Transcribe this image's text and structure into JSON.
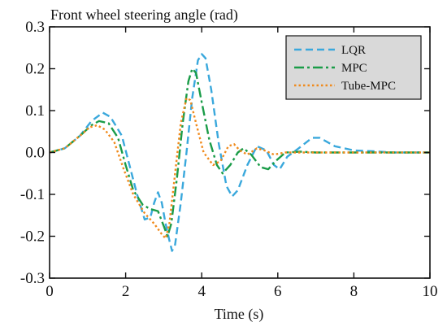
{
  "chart_data": {
    "type": "line",
    "title": "Front wheel steering angle (rad)",
    "xlabel": "Time (s)",
    "ylabel": "",
    "xlim": [
      0,
      10
    ],
    "ylim": [
      -0.3,
      0.3
    ],
    "x_ticks": [
      "0",
      "2",
      "4",
      "6",
      "8",
      "10"
    ],
    "y_ticks": [
      "-0.3",
      "-0.2",
      "-0.1",
      "0.0",
      "0.1",
      "0.2",
      "0.3"
    ],
    "grid": false,
    "legend_position": "top-right",
    "legend_background": "#d9d9d9",
    "series": [
      {
        "name": "LQR",
        "color": "#3aa8dc",
        "dash": "dashed",
        "points": [
          [
            0,
            0
          ],
          [
            0.4,
            0.01
          ],
          [
            0.8,
            0.04
          ],
          [
            1.1,
            0.075
          ],
          [
            1.4,
            0.095
          ],
          [
            1.6,
            0.085
          ],
          [
            1.9,
            0.04
          ],
          [
            2.1,
            -0.03
          ],
          [
            2.3,
            -0.1
          ],
          [
            2.5,
            -0.16
          ],
          [
            2.65,
            -0.155
          ],
          [
            2.75,
            -0.12
          ],
          [
            2.85,
            -0.095
          ],
          [
            2.95,
            -0.12
          ],
          [
            3.05,
            -0.17
          ],
          [
            3.15,
            -0.21
          ],
          [
            3.22,
            -0.235
          ],
          [
            3.3,
            -0.22
          ],
          [
            3.45,
            -0.12
          ],
          [
            3.6,
            0.0
          ],
          [
            3.75,
            0.13
          ],
          [
            3.9,
            0.22
          ],
          [
            4.0,
            0.235
          ],
          [
            4.1,
            0.225
          ],
          [
            4.25,
            0.15
          ],
          [
            4.45,
            0.02
          ],
          [
            4.65,
            -0.08
          ],
          [
            4.8,
            -0.105
          ],
          [
            4.95,
            -0.09
          ],
          [
            5.2,
            -0.03
          ],
          [
            5.45,
            0.015
          ],
          [
            5.7,
            0.005
          ],
          [
            5.9,
            -0.03
          ],
          [
            6.05,
            -0.04
          ],
          [
            6.25,
            -0.01
          ],
          [
            6.55,
            0.01
          ],
          [
            6.9,
            0.035
          ],
          [
            7.1,
            0.035
          ],
          [
            7.5,
            0.015
          ],
          [
            8.0,
            0.005
          ],
          [
            8.5,
            0.003
          ],
          [
            9.0,
            0.0
          ],
          [
            10,
            0
          ]
        ]
      },
      {
        "name": "MPC",
        "color": "#1a9c48",
        "dash": "dashdot",
        "points": [
          [
            0,
            0
          ],
          [
            0.4,
            0.01
          ],
          [
            0.8,
            0.04
          ],
          [
            1.1,
            0.065
          ],
          [
            1.3,
            0.075
          ],
          [
            1.55,
            0.07
          ],
          [
            1.8,
            0.035
          ],
          [
            2.0,
            -0.03
          ],
          [
            2.2,
            -0.09
          ],
          [
            2.45,
            -0.125
          ],
          [
            2.65,
            -0.135
          ],
          [
            2.85,
            -0.14
          ],
          [
            3.0,
            -0.175
          ],
          [
            3.1,
            -0.2
          ],
          [
            3.2,
            -0.17
          ],
          [
            3.35,
            -0.06
          ],
          [
            3.5,
            0.07
          ],
          [
            3.65,
            0.17
          ],
          [
            3.75,
            0.2
          ],
          [
            3.85,
            0.19
          ],
          [
            4.0,
            0.12
          ],
          [
            4.2,
            0.03
          ],
          [
            4.4,
            -0.03
          ],
          [
            4.55,
            -0.05
          ],
          [
            4.75,
            -0.03
          ],
          [
            4.95,
            0.0
          ],
          [
            5.1,
            0.01
          ],
          [
            5.3,
            -0.005
          ],
          [
            5.55,
            -0.035
          ],
          [
            5.75,
            -0.04
          ],
          [
            5.95,
            -0.02
          ],
          [
            6.2,
            0.0
          ],
          [
            6.6,
            0.002
          ],
          [
            7.0,
            0.0
          ],
          [
            10,
            0
          ]
        ]
      },
      {
        "name": "Tube-MPC",
        "color": "#f08a1c",
        "dash": "dotted",
        "points": [
          [
            0,
            0
          ],
          [
            0.4,
            0.01
          ],
          [
            0.8,
            0.04
          ],
          [
            1.05,
            0.06
          ],
          [
            1.25,
            0.065
          ],
          [
            1.45,
            0.055
          ],
          [
            1.7,
            0.025
          ],
          [
            1.95,
            -0.04
          ],
          [
            2.2,
            -0.1
          ],
          [
            2.5,
            -0.145
          ],
          [
            2.75,
            -0.17
          ],
          [
            2.95,
            -0.195
          ],
          [
            3.05,
            -0.205
          ],
          [
            3.15,
            -0.17
          ],
          [
            3.3,
            -0.05
          ],
          [
            3.45,
            0.07
          ],
          [
            3.6,
            0.13
          ],
          [
            3.7,
            0.125
          ],
          [
            3.85,
            0.07
          ],
          [
            4.05,
            0.0
          ],
          [
            4.3,
            -0.03
          ],
          [
            4.5,
            -0.02
          ],
          [
            4.7,
            0.015
          ],
          [
            4.85,
            0.02
          ],
          [
            5.0,
            0.005
          ],
          [
            5.2,
            -0.005
          ],
          [
            5.45,
            0.01
          ],
          [
            5.65,
            0.005
          ],
          [
            5.9,
            -0.005
          ],
          [
            6.2,
            0.0
          ],
          [
            7.0,
            0.0
          ],
          [
            10,
            0
          ]
        ]
      }
    ]
  }
}
